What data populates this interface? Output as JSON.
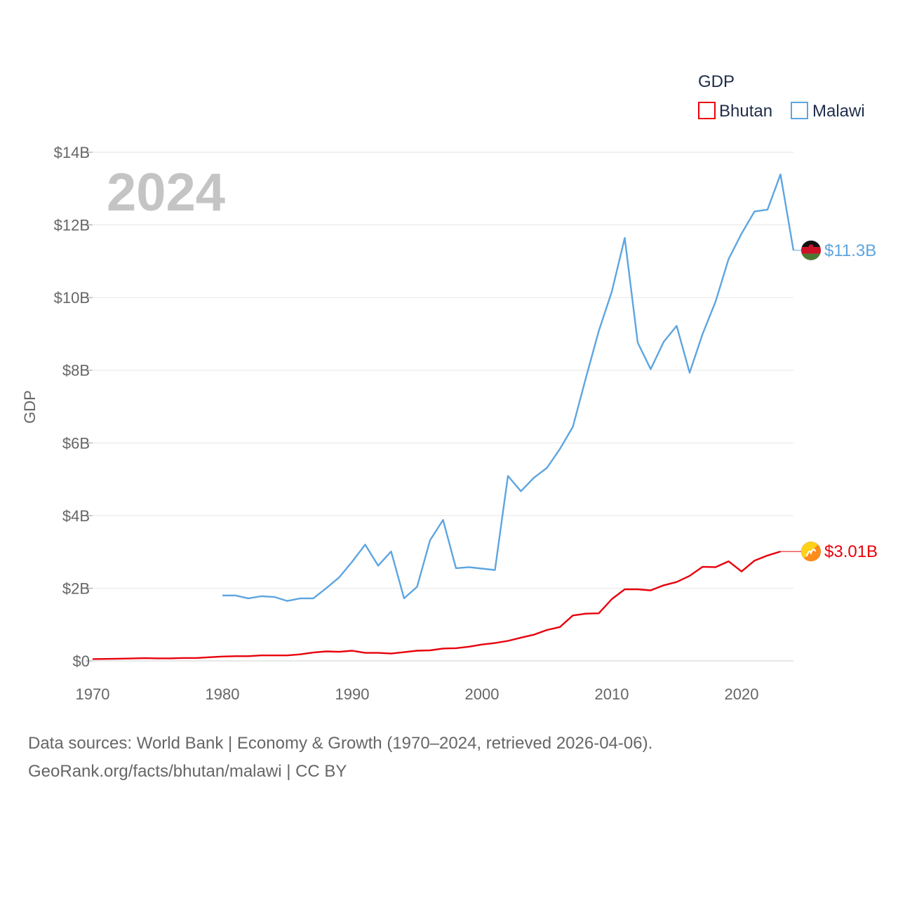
{
  "chart_data": {
    "type": "line",
    "title": "GDP",
    "year_label": "2024",
    "xlabel": "",
    "ylabel": "GDP",
    "xlim": [
      1970,
      2024
    ],
    "ylim": [
      0,
      14
    ],
    "y_unit": "billion USD",
    "x_ticks": [
      1970,
      1980,
      1990,
      2000,
      2010,
      2020
    ],
    "x_tick_labels": [
      "1970",
      "1980",
      "1990",
      "2000",
      "2010",
      "2020"
    ],
    "y_ticks": [
      0,
      2,
      4,
      6,
      8,
      10,
      12,
      14
    ],
    "y_tick_labels": [
      "$0",
      "$2B",
      "$4B",
      "$6B",
      "$8B",
      "$10B",
      "$12B",
      "$14B"
    ],
    "legend_title": "GDP",
    "legend_position": "top-right",
    "grid": true,
    "series": [
      {
        "name": "Bhutan",
        "color": "#e8000b",
        "end_label": "$3.01B",
        "flag_icon": "bhutan-flag-icon",
        "x": [
          1970,
          1971,
          1972,
          1973,
          1974,
          1975,
          1976,
          1977,
          1978,
          1979,
          1980,
          1981,
          1982,
          1983,
          1984,
          1985,
          1986,
          1987,
          1988,
          1989,
          1990,
          1991,
          1992,
          1993,
          1994,
          1995,
          1996,
          1997,
          1998,
          1999,
          2000,
          2001,
          2002,
          2003,
          2004,
          2005,
          2006,
          2007,
          2008,
          2009,
          2010,
          2011,
          2012,
          2013,
          2014,
          2015,
          2016,
          2017,
          2018,
          2019,
          2020,
          2021,
          2022,
          2023
        ],
        "values": [
          0.05,
          0.055,
          0.06,
          0.065,
          0.075,
          0.07,
          0.07,
          0.08,
          0.08,
          0.1,
          0.12,
          0.13,
          0.13,
          0.15,
          0.15,
          0.15,
          0.18,
          0.23,
          0.26,
          0.25,
          0.28,
          0.22,
          0.22,
          0.2,
          0.24,
          0.28,
          0.29,
          0.34,
          0.35,
          0.39,
          0.45,
          0.49,
          0.55,
          0.64,
          0.72,
          0.85,
          0.93,
          1.25,
          1.3,
          1.31,
          1.7,
          1.97,
          1.97,
          1.94,
          2.08,
          2.17,
          2.34,
          2.59,
          2.58,
          2.74,
          2.46,
          2.76,
          2.9,
          3.01
        ]
      },
      {
        "name": "Malawi",
        "color": "#5da5e0",
        "end_label": "$11.3B",
        "flag_icon": "malawi-flag-icon",
        "x": [
          1980,
          1981,
          1982,
          1983,
          1984,
          1985,
          1986,
          1987,
          1988,
          1989,
          1990,
          1991,
          1992,
          1993,
          1994,
          1995,
          1996,
          1997,
          1998,
          1999,
          2000,
          2001,
          2002,
          2003,
          2004,
          2005,
          2006,
          2007,
          2008,
          2009,
          2010,
          2011,
          2012,
          2013,
          2014,
          2015,
          2016,
          2017,
          2018,
          2019,
          2020,
          2021,
          2022,
          2023,
          2024
        ],
        "values": [
          1.8,
          1.8,
          1.72,
          1.78,
          1.76,
          1.65,
          1.72,
          1.72,
          2.0,
          2.3,
          2.73,
          3.2,
          2.62,
          3.01,
          1.72,
          2.04,
          3.32,
          3.88,
          2.55,
          2.58,
          2.54,
          2.5,
          5.09,
          4.67,
          5.04,
          5.31,
          5.83,
          6.44,
          7.78,
          9.08,
          10.16,
          11.64,
          8.76,
          8.03,
          8.78,
          9.22,
          7.93,
          9.0,
          9.89,
          11.06,
          11.76,
          12.37,
          12.42,
          13.39,
          11.3
        ]
      }
    ]
  },
  "footer": {
    "line1": "Data sources: World Bank | Economy & Growth (1970–2024, retrieved 2026-04-06).",
    "line2": "GeoRank.org/facts/bhutan/malawi | CC BY"
  }
}
